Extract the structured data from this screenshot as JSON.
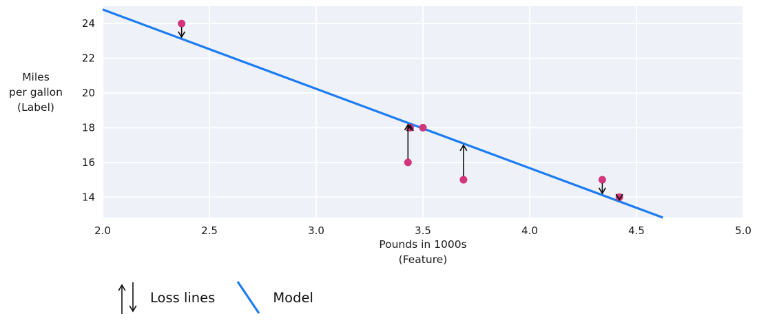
{
  "chart_data": {
    "type": "scatter",
    "title": "",
    "xlabel_lines": [
      "Pounds in 1000s",
      "(Feature)"
    ],
    "ylabel_lines": [
      "Miles",
      "per gallon",
      "(Label)"
    ],
    "xlim": [
      2.0,
      5.0
    ],
    "ylim": [
      12.82,
      25.0
    ],
    "xtick_values": [
      2.0,
      2.5,
      3.0,
      3.5,
      4.0,
      4.5,
      5.0
    ],
    "xtick_labels": [
      "2.0",
      "2.5",
      "3.0",
      "3.5",
      "4.0",
      "4.5",
      "5.0"
    ],
    "ytick_values": [
      14,
      16,
      18,
      20,
      22,
      24
    ],
    "ytick_labels": [
      "14",
      "16",
      "18",
      "20",
      "22",
      "24"
    ],
    "grid": true,
    "points": [
      {
        "x": 2.37,
        "y": 24,
        "loss_line": true
      },
      {
        "x": 3.43,
        "y": 16,
        "loss_line": true
      },
      {
        "x": 3.44,
        "y": 18,
        "loss_line": true
      },
      {
        "x": 3.5,
        "y": 18,
        "loss_line": false
      },
      {
        "x": 3.69,
        "y": 15,
        "loss_line": true
      },
      {
        "x": 4.34,
        "y": 15,
        "loss_line": true
      },
      {
        "x": 4.42,
        "y": 14,
        "loss_line": true
      }
    ],
    "model_line": {
      "slope": -4.57,
      "intercept": 33.95
    },
    "legend": [
      {
        "icon": "loss-arrows",
        "label": "Loss lines"
      },
      {
        "icon": "model-line",
        "label": "Model"
      }
    ],
    "legend_position": "bottom-left",
    "colors": {
      "point": "#d2357b",
      "model_line": "#1d7cf2",
      "plot_background": "#eef2f8",
      "gridline": "#ffffff",
      "text": "#1a1a1a",
      "loss_arrow": "#111111"
    }
  }
}
